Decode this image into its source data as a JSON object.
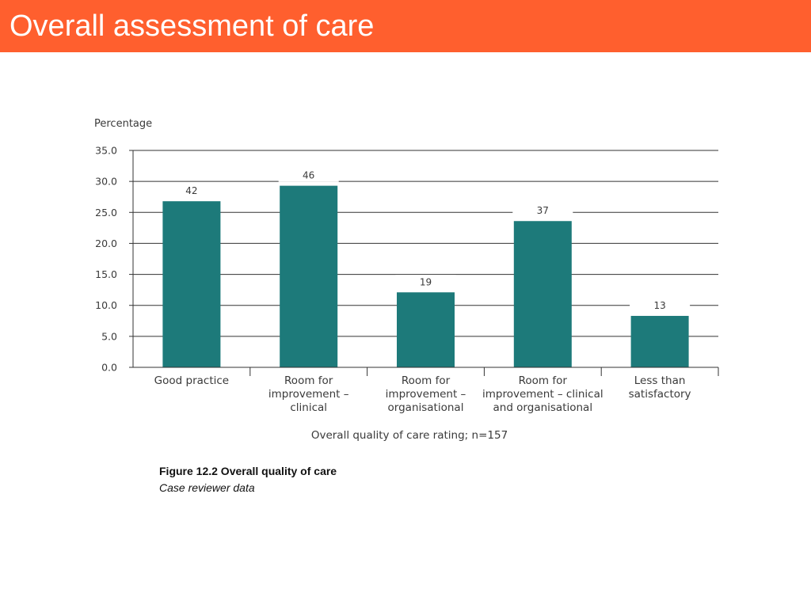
{
  "slide": {
    "title": "Overall assessment of care"
  },
  "colors": {
    "header": "#ff5f2e",
    "bar": "#1d7a7a"
  },
  "caption": {
    "title": "Figure 12.2 Overall quality of care",
    "subtitle": "Case reviewer data"
  },
  "chart_data": {
    "type": "bar",
    "ylabel": "Percentage",
    "xlabel": "Overall quality of care rating; n=157",
    "ylim": [
      0,
      35
    ],
    "yticks": [
      "0.0",
      "5.0",
      "10.0",
      "15.0",
      "20.0",
      "25.0",
      "30.0",
      "35.0"
    ],
    "grid": true,
    "categories": [
      [
        "Good practice"
      ],
      [
        "Room for",
        "improvement –",
        "clinical"
      ],
      [
        "Room for",
        "improvement –",
        "organisational"
      ],
      [
        "Room for",
        "improvement – clinical",
        "and organisational"
      ],
      [
        "Less than",
        "satisfactory"
      ]
    ],
    "values": [
      26.8,
      29.3,
      12.1,
      23.6,
      8.3
    ],
    "data_labels": [
      "42",
      "46",
      "19",
      "37",
      "13"
    ]
  }
}
